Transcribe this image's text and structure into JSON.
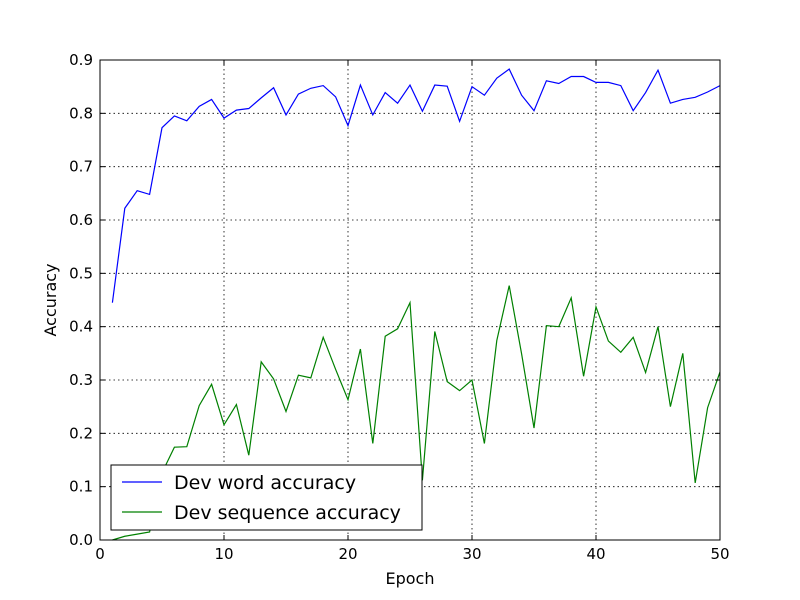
{
  "chart_data": {
    "type": "line",
    "title": "",
    "xlabel": "Epoch",
    "ylabel": "Accuracy",
    "xlim": [
      0,
      50
    ],
    "ylim": [
      0.0,
      0.9
    ],
    "xticks": [
      0,
      10,
      20,
      30,
      40,
      50
    ],
    "yticks": [
      0.0,
      0.1,
      0.2,
      0.3,
      0.4,
      0.5,
      0.6,
      0.7,
      0.8,
      0.9
    ],
    "xtick_labels": [
      "0",
      "10",
      "20",
      "30",
      "40",
      "50"
    ],
    "ytick_labels": [
      "0.0",
      "0.1",
      "0.2",
      "0.3",
      "0.4",
      "0.5",
      "0.6",
      "0.7",
      "0.8",
      "0.9"
    ],
    "grid": true,
    "legend_position": "lower-left",
    "x": [
      1,
      2,
      3,
      4,
      5,
      6,
      7,
      8,
      9,
      10,
      11,
      12,
      13,
      14,
      15,
      16,
      17,
      18,
      19,
      20,
      21,
      22,
      23,
      24,
      25,
      26,
      27,
      28,
      29,
      30,
      31,
      32,
      33,
      34,
      35,
      36,
      37,
      38,
      39,
      40,
      41,
      42,
      43,
      44,
      45,
      46,
      47,
      48,
      49,
      50
    ],
    "series": [
      {
        "name": "Dev word accuracy",
        "color": "#0000ff",
        "values": [
          0.445,
          0.622,
          0.655,
          0.648,
          0.773,
          0.795,
          0.786,
          0.813,
          0.826,
          0.791,
          0.806,
          0.809,
          0.829,
          0.848,
          0.797,
          0.836,
          0.847,
          0.852,
          0.831,
          0.777,
          0.853,
          0.797,
          0.839,
          0.819,
          0.853,
          0.804,
          0.853,
          0.851,
          0.785,
          0.85,
          0.834,
          0.866,
          0.883,
          0.834,
          0.805,
          0.861,
          0.856,
          0.869,
          0.869,
          0.858,
          0.858,
          0.852,
          0.805,
          0.839,
          0.881,
          0.819,
          0.826,
          0.83,
          0.84,
          0.852
        ]
      },
      {
        "name": "Dev sequence accuracy",
        "color": "#008000",
        "values": [
          0.0,
          0.007,
          0.011,
          0.015,
          0.126,
          0.174,
          0.175,
          0.252,
          0.292,
          0.216,
          0.254,
          0.159,
          0.334,
          0.302,
          0.241,
          0.309,
          0.304,
          0.38,
          0.32,
          0.263,
          0.358,
          0.181,
          0.382,
          0.396,
          0.445,
          0.112,
          0.391,
          0.297,
          0.28,
          0.3,
          0.181,
          0.374,
          0.477,
          0.349,
          0.21,
          0.402,
          0.4,
          0.454,
          0.307,
          0.437,
          0.373,
          0.352,
          0.38,
          0.314,
          0.4,
          0.25,
          0.35,
          0.107,
          0.248,
          0.315
        ]
      }
    ]
  }
}
